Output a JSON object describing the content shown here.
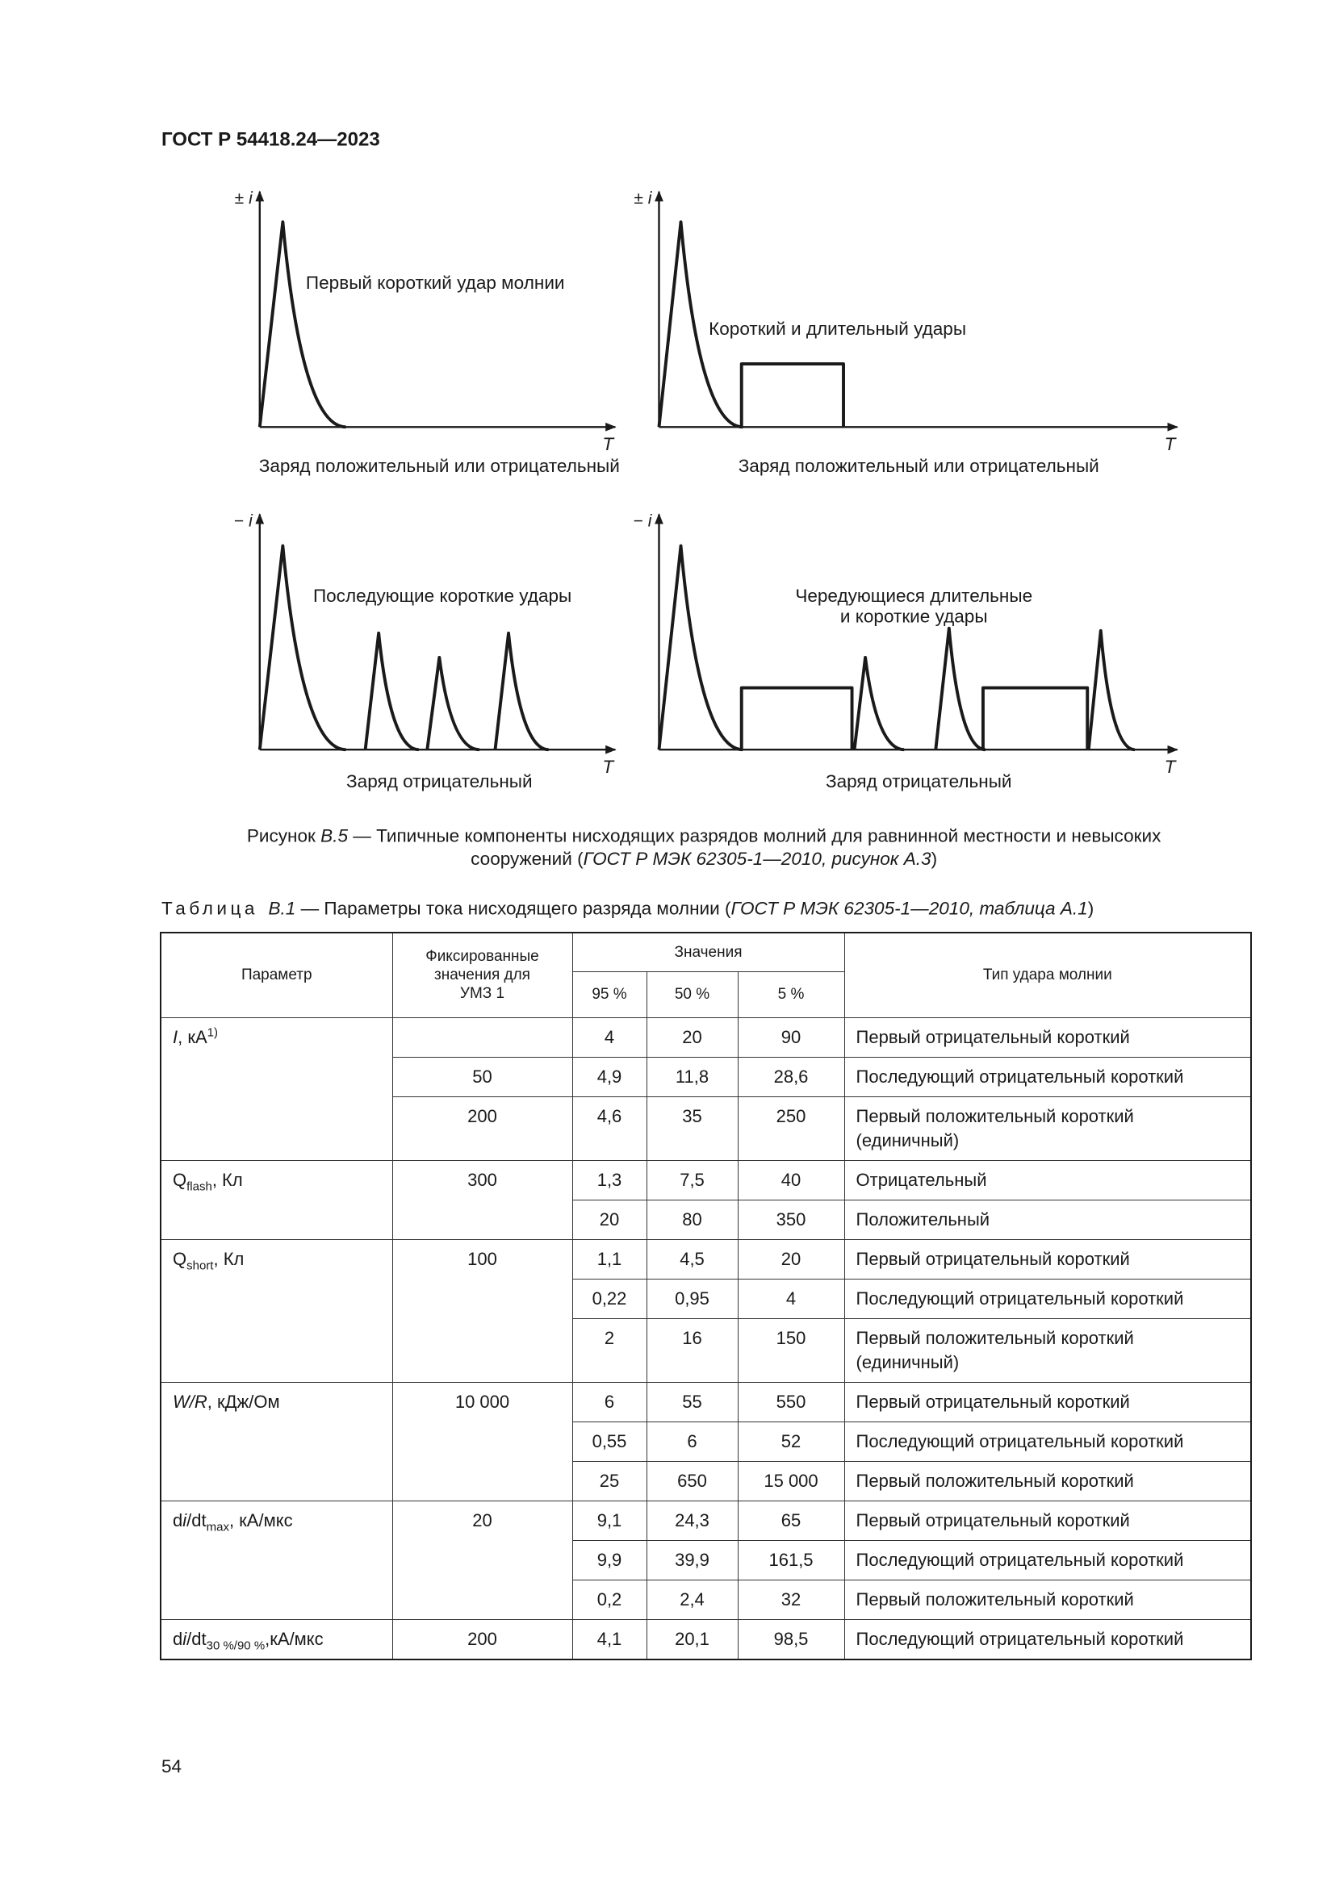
{
  "header": {
    "title": "ГОСТ Р 54418.24—2023"
  },
  "figure": {
    "panels": [
      {
        "y_sign": "±",
        "y_var": "i",
        "x_var": "T",
        "label": [
          "Первый короткий удар молнии"
        ],
        "caption": "Заряд положительный или отрицательный"
      },
      {
        "y_sign": "±",
        "y_var": "i",
        "x_var": "T",
        "label": [
          "Короткий и длительный удары"
        ],
        "caption": "Заряд положительный или отрицательный"
      },
      {
        "y_sign": "−",
        "y_var": "i",
        "x_var": "T",
        "label": [
          "Последующие короткие удары"
        ],
        "caption": "Заряд отрицательный"
      },
      {
        "y_sign": "−",
        "y_var": "i",
        "x_var": "T",
        "label": [
          "Чередующиеся длительные",
          "и короткие удары"
        ],
        "caption": "Заряд отрицательный"
      }
    ],
    "caption": [
      [
        {
          "text": "Рисунок ",
          "style": "normal"
        },
        {
          "text": "В.5",
          "style": "italic"
        },
        {
          "text": " — Типичные компоненты нисходящих разрядов молний для равнинной местности и невысоких",
          "style": "normal"
        }
      ],
      [
        {
          "text": "сооружений (",
          "style": "normal"
        },
        {
          "text": "ГОСТ Р МЭК 62305-1—2010, рисунок А.3",
          "style": "italic"
        },
        {
          "text": ")",
          "style": "normal"
        }
      ]
    ]
  },
  "table": {
    "caption": [
      {
        "text": "Таблица",
        "style": "spaced"
      },
      {
        "text": "В.1",
        "style": "italic"
      },
      {
        "text": " — Параметры тока нисходящего разряда молнии (",
        "style": "normal"
      },
      {
        "text": "ГОСТ Р МЭК 62305-1—2010, таблица А.1",
        "style": "italic"
      },
      {
        "text": ")",
        "style": "normal"
      }
    ],
    "header": {
      "parameter": "Параметр",
      "fixed": "Фиксированные значения для УМЗ 1",
      "values": "Значения",
      "percentiles": [
        "95 %",
        "50 %",
        "5 %"
      ],
      "type": "Тип удара молнии"
    },
    "groups": [
      {
        "parameter": [
          {
            "text": "I",
            "style": "italic"
          },
          {
            "text": ", кА",
            "style": "normal"
          },
          {
            "text": "1)",
            "style": "sup"
          }
        ],
        "rows": [
          {
            "values": [
              "4",
              "20",
              "90"
            ],
            "type": [
              "Первый отрицательный короткий"
            ]
          },
          {
            "fixed": "50",
            "values": [
              "4,9",
              "11,8",
              "28,6"
            ],
            "type": [
              "Последующий отрицательный короткий"
            ]
          },
          {
            "fixed": "200",
            "values": [
              "4,6",
              "35",
              "250"
            ],
            "type": [
              "Первый положительный короткий",
              "(единичный)"
            ]
          }
        ]
      },
      {
        "parameter": [
          {
            "text": "Q",
            "style": "normal"
          },
          {
            "text": "flash",
            "style": "sub"
          },
          {
            "text": ", Кл",
            "style": "normal"
          }
        ],
        "fixed": "300",
        "rows": [
          {
            "values": [
              "1,3",
              "7,5",
              "40"
            ],
            "type": [
              "Отрицательный"
            ]
          },
          {
            "values": [
              "20",
              "80",
              "350"
            ],
            "type": [
              "Положительный"
            ]
          }
        ]
      },
      {
        "parameter": [
          {
            "text": "Q",
            "style": "normal"
          },
          {
            "text": "short",
            "style": "sub"
          },
          {
            "text": ", Кл",
            "style": "normal"
          }
        ],
        "fixed": "100",
        "rows": [
          {
            "values": [
              "1,1",
              "4,5",
              "20"
            ],
            "type": [
              "Первый отрицательный короткий"
            ]
          },
          {
            "values": [
              "0,22",
              "0,95",
              "4"
            ],
            "type": [
              "Последующий отрицательный короткий"
            ]
          },
          {
            "values": [
              "2",
              "16",
              "150"
            ],
            "type": [
              "Первый положительный короткий",
              "(единичный)"
            ]
          }
        ]
      },
      {
        "parameter": [
          {
            "text": "W/R",
            "style": "italic"
          },
          {
            "text": ", кДж/Ом",
            "style": "normal"
          }
        ],
        "fixed": "10 000",
        "rows": [
          {
            "values": [
              "6",
              "55",
              "550"
            ],
            "type": [
              "Первый отрицательный короткий"
            ]
          },
          {
            "values": [
              "0,55",
              "6",
              "52"
            ],
            "type": [
              "Последующий отрицательный короткий"
            ]
          },
          {
            "values": [
              "25",
              "650",
              "15 000"
            ],
            "type": [
              "Первый положительный короткий"
            ]
          }
        ]
      },
      {
        "parameter": [
          {
            "text": "d",
            "style": "normal"
          },
          {
            "text": "i",
            "style": "italic"
          },
          {
            "text": "/dt",
            "style": "normal"
          },
          {
            "text": "max",
            "style": "sub"
          },
          {
            "text": ", кА/мкс",
            "style": "normal"
          }
        ],
        "fixed": "20",
        "rows": [
          {
            "values": [
              "9,1",
              "24,3",
              "65"
            ],
            "type": [
              "Первый отрицательный короткий"
            ]
          },
          {
            "values": [
              "9,9",
              "39,9",
              "161,5"
            ],
            "type": [
              "Последующий отрицательный короткий"
            ]
          },
          {
            "values": [
              "0,2",
              "2,4",
              "32"
            ],
            "type": [
              "Первый положительный короткий"
            ]
          }
        ]
      },
      {
        "parameter": [
          {
            "text": "d",
            "style": "normal"
          },
          {
            "text": "i",
            "style": "italic"
          },
          {
            "text": "/dt",
            "style": "normal"
          },
          {
            "text": "30 %/90 %",
            "style": "sub"
          },
          {
            "text": ",кА/мкс",
            "style": "normal"
          }
        ],
        "fixed": "200",
        "rows": [
          {
            "values": [
              "4,1",
              "20,1",
              "98,5"
            ],
            "type": [
              "Последующий отрицательный короткий"
            ]
          }
        ]
      }
    ]
  },
  "page_number": "54"
}
